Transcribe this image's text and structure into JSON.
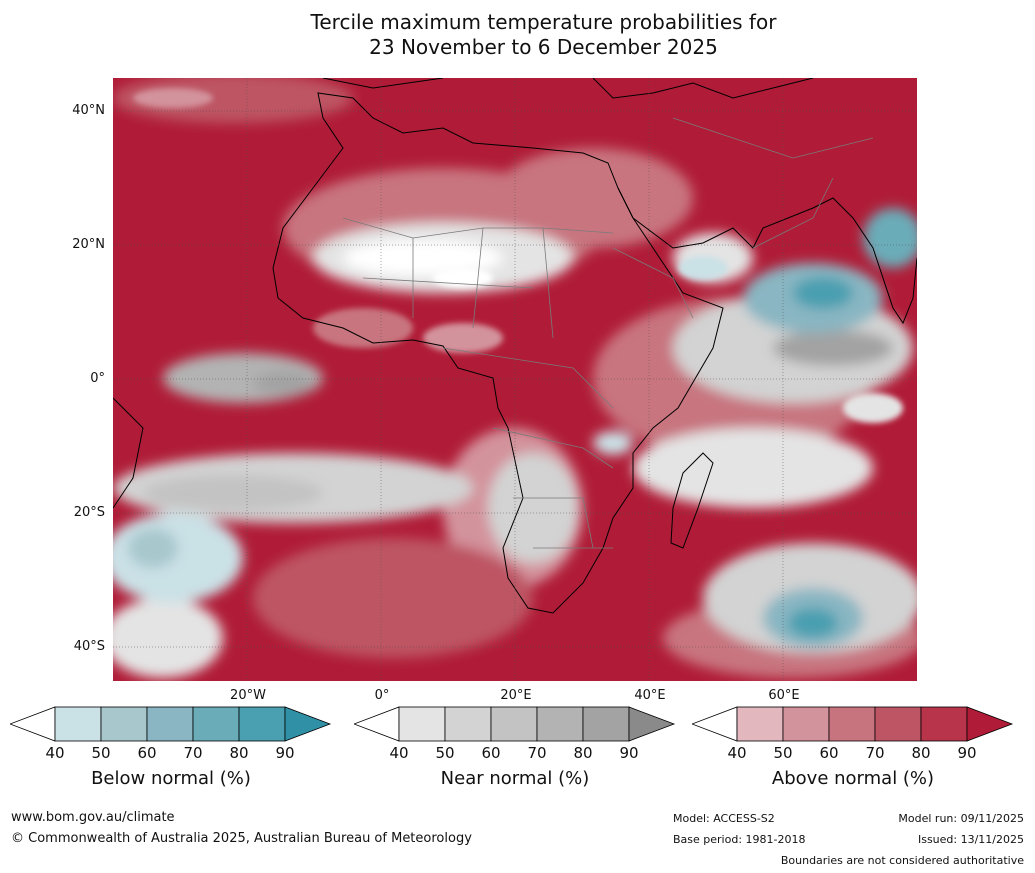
{
  "title": {
    "line1": "Tercile maximum temperature probabilities for",
    "line2": "23 November to 6 December 2025"
  },
  "map": {
    "lat_labels": [
      "40°N",
      "20°N",
      "0°",
      "20°S",
      "40°S"
    ],
    "lon_labels": [
      "20°W",
      "0°",
      "20°E",
      "40°E",
      "60°E"
    ]
  },
  "colorbars": [
    {
      "label": "Below normal (%)",
      "ticks": [
        "40",
        "50",
        "60",
        "70",
        "80",
        "90"
      ],
      "colors": [
        "#ffffff",
        "#cae1e6",
        "#a7c7cd",
        "#89b6c2",
        "#6aacb8",
        "#4a9fb0",
        "#3091a6"
      ]
    },
    {
      "label": "Near normal (%)",
      "ticks": [
        "40",
        "50",
        "60",
        "70",
        "80",
        "90"
      ],
      "colors": [
        "#ffffff",
        "#e4e4e4",
        "#d3d3d3",
        "#c3c3c3",
        "#b3b3b3",
        "#a3a3a3",
        "#8a8a8a"
      ]
    },
    {
      "label": "Above normal (%)",
      "ticks": [
        "40",
        "50",
        "60",
        "70",
        "80",
        "90"
      ],
      "colors": [
        "#ffffff",
        "#e2b7bd",
        "#d3939c",
        "#c8747f",
        "#bd5564",
        "#b7344a",
        "#b01c37"
      ]
    }
  ],
  "footer": {
    "website": "www.bom.gov.au/climate",
    "copyright": "© Commonwealth of Australia 2025, Australian Bureau of Meteorology",
    "model": "Model: ACCESS-S2",
    "base_period": "Base period: 1981-2018",
    "model_run": "Model run: 09/11/2025",
    "issued": "Issued: 13/11/2025",
    "disclaimer": "Boundaries are not considered authoritative"
  }
}
